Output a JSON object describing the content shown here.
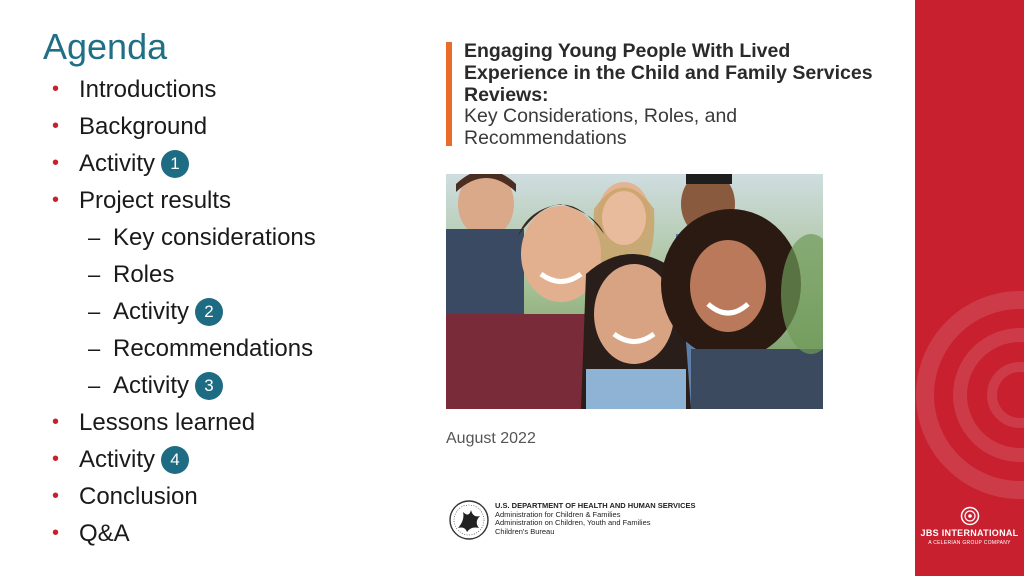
{
  "agenda": {
    "title": "Agenda",
    "items": [
      {
        "label": "Introductions",
        "level": 1
      },
      {
        "label": "Background",
        "level": 1
      },
      {
        "label": "Activity",
        "level": 1,
        "badge": "1"
      },
      {
        "label": "Project results",
        "level": 1
      },
      {
        "label": "Key considerations",
        "level": 2
      },
      {
        "label": "Roles",
        "level": 2
      },
      {
        "label": "Activity",
        "level": 2,
        "badge": "2"
      },
      {
        "label": "Recommendations",
        "level": 2
      },
      {
        "label": "Activity",
        "level": 2,
        "badge": "3"
      },
      {
        "label": "Lessons learned",
        "level": 1
      },
      {
        "label": "Activity",
        "level": 1,
        "badge": "4"
      },
      {
        "label": "Conclusion",
        "level": 1
      },
      {
        "label": "Q&A",
        "level": 1
      }
    ],
    "bullet_glyph": "•",
    "dash_glyph": "–"
  },
  "cover": {
    "title": "Engaging Young People With Lived Experience in the Child and Family Services Reviews:",
    "subtitle": "Key Considerations, Roles, and Recommendations",
    "date": "August 2022",
    "agency": {
      "line1": "U.S. DEPARTMENT OF HEALTH AND HUMAN SERVICES",
      "line2": "Administration for Children & Families",
      "line3": "Administration on Children, Youth and Families",
      "line4": "Children's Bureau"
    }
  },
  "brand": {
    "name": "JBS INTERNATIONAL",
    "tagline": "A CELERIAN GROUP COMPANY"
  },
  "colors": {
    "title": "#1f6f86",
    "bullet": "#c8202f",
    "badge": "#1e6b84",
    "cover_accent": "#e86d2a",
    "band": "#c8202f"
  }
}
